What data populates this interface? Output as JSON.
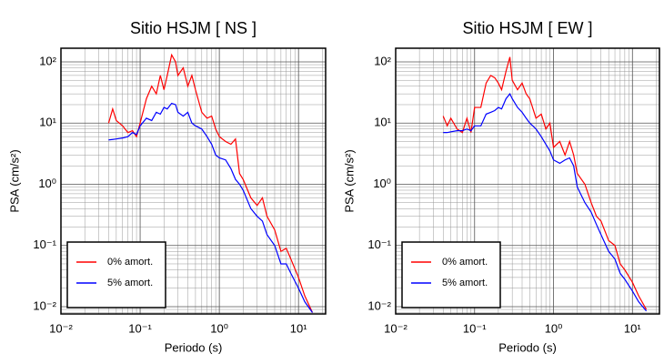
{
  "chart_data": [
    {
      "type": "line",
      "title": "Sitio HSJM [ NS ]",
      "x_label": "Periodo (s)",
      "y_label": "PSA (cm/s²)",
      "log_x": true,
      "log_y": true,
      "grid": true,
      "legend": "lower left",
      "xlim": [
        0.01,
        22
      ],
      "ylim": [
        0.0076,
        167
      ],
      "xticks": [
        {
          "value": 0.01,
          "label": "10⁻²"
        },
        {
          "value": 0.1,
          "label": "10⁻¹"
        },
        {
          "value": 1,
          "label": "10⁰"
        },
        {
          "value": 10,
          "label": "10¹"
        }
      ],
      "yticks": [
        {
          "value": 0.01,
          "label": "10⁻²"
        },
        {
          "value": 0.1,
          "label": "10⁻¹"
        },
        {
          "value": 1,
          "label": "10⁰"
        },
        {
          "value": 10,
          "label": "10¹"
        },
        {
          "value": 100,
          "label": "10²"
        }
      ],
      "x": [
        0.04,
        0.045,
        0.05,
        0.06,
        0.07,
        0.08,
        0.09,
        0.1,
        0.12,
        0.14,
        0.16,
        0.18,
        0.2,
        0.22,
        0.25,
        0.28,
        0.3,
        0.35,
        0.4,
        0.45,
        0.5,
        0.6,
        0.7,
        0.8,
        0.9,
        1.0,
        1.2,
        1.4,
        1.6,
        1.8,
        2,
        2.5,
        3,
        3.5,
        4,
        5,
        6,
        7,
        8,
        10,
        12,
        15
      ],
      "series": [
        {
          "name": "0% amort.",
          "color": "#ff0000",
          "values": [
            10,
            17,
            11,
            9,
            7,
            7.5,
            6,
            10,
            25,
            40,
            30,
            60,
            35,
            60,
            130,
            100,
            60,
            80,
            40,
            60,
            35,
            15,
            12,
            13,
            8,
            6,
            5,
            4.5,
            5.5,
            1.5,
            1.2,
            0.6,
            0.45,
            0.6,
            0.3,
            0.18,
            0.08,
            0.09,
            0.06,
            0.03,
            0.015,
            0.008
          ]
        },
        {
          "name": "5% amort.",
          "color": "#0000ff",
          "values": [
            5.3,
            5.4,
            5.5,
            5.7,
            6,
            7,
            6.5,
            9,
            12,
            11,
            15,
            14,
            18,
            17,
            21,
            20,
            15,
            13,
            15,
            10,
            9,
            8,
            6,
            4.5,
            3,
            2.7,
            2.5,
            1.8,
            1.2,
            1,
            0.8,
            0.4,
            0.3,
            0.25,
            0.15,
            0.1,
            0.05,
            0.05,
            0.035,
            0.02,
            0.012,
            0.008
          ]
        }
      ]
    },
    {
      "type": "line",
      "title": "Sitio HSJM [ EW ]",
      "x_label": "Periodo (s)",
      "y_label": "PSA (cm/s²)",
      "log_x": true,
      "log_y": true,
      "grid": true,
      "legend": "lower left",
      "xlim": [
        0.01,
        22
      ],
      "ylim": [
        0.0076,
        167
      ],
      "xticks": [
        {
          "value": 0.01,
          "label": "10⁻²"
        },
        {
          "value": 0.1,
          "label": "10⁻¹"
        },
        {
          "value": 1,
          "label": "10⁰"
        },
        {
          "value": 10,
          "label": "10¹"
        }
      ],
      "yticks": [
        {
          "value": 0.01,
          "label": "10⁻²"
        },
        {
          "value": 0.1,
          "label": "10⁻¹"
        },
        {
          "value": 1,
          "label": "10⁰"
        },
        {
          "value": 10,
          "label": "10¹"
        },
        {
          "value": 100,
          "label": "10²"
        }
      ],
      "x": [
        0.04,
        0.045,
        0.05,
        0.06,
        0.07,
        0.08,
        0.09,
        0.1,
        0.12,
        0.14,
        0.16,
        0.18,
        0.2,
        0.22,
        0.25,
        0.28,
        0.3,
        0.35,
        0.4,
        0.45,
        0.5,
        0.6,
        0.7,
        0.8,
        0.9,
        1.0,
        1.2,
        1.4,
        1.6,
        1.8,
        2,
        2.5,
        3,
        3.5,
        4,
        5,
        6,
        7,
        8,
        10,
        12,
        15
      ],
      "series": [
        {
          "name": "0% amort.",
          "color": "#ff0000",
          "values": [
            13,
            9,
            12,
            8,
            7,
            12,
            7,
            18,
            18,
            45,
            60,
            55,
            45,
            35,
            70,
            120,
            50,
            35,
            45,
            30,
            25,
            12,
            14,
            8,
            10,
            4,
            5,
            3,
            5,
            3,
            1.5,
            1,
            0.5,
            0.3,
            0.25,
            0.12,
            0.1,
            0.05,
            0.04,
            0.025,
            0.015,
            0.009
          ]
        },
        {
          "name": "5% amort.",
          "color": "#0000ff",
          "values": [
            7,
            7,
            7.2,
            7.5,
            7.5,
            8,
            7.5,
            9,
            9,
            14,
            15,
            16,
            18,
            17,
            25,
            30,
            25,
            18,
            15,
            12,
            10,
            8,
            6,
            4.5,
            3.5,
            2.5,
            2.2,
            2.5,
            2.7,
            2.0,
            0.9,
            0.5,
            0.35,
            0.22,
            0.15,
            0.08,
            0.06,
            0.035,
            0.028,
            0.018,
            0.012,
            0.0085
          ]
        }
      ]
    }
  ]
}
